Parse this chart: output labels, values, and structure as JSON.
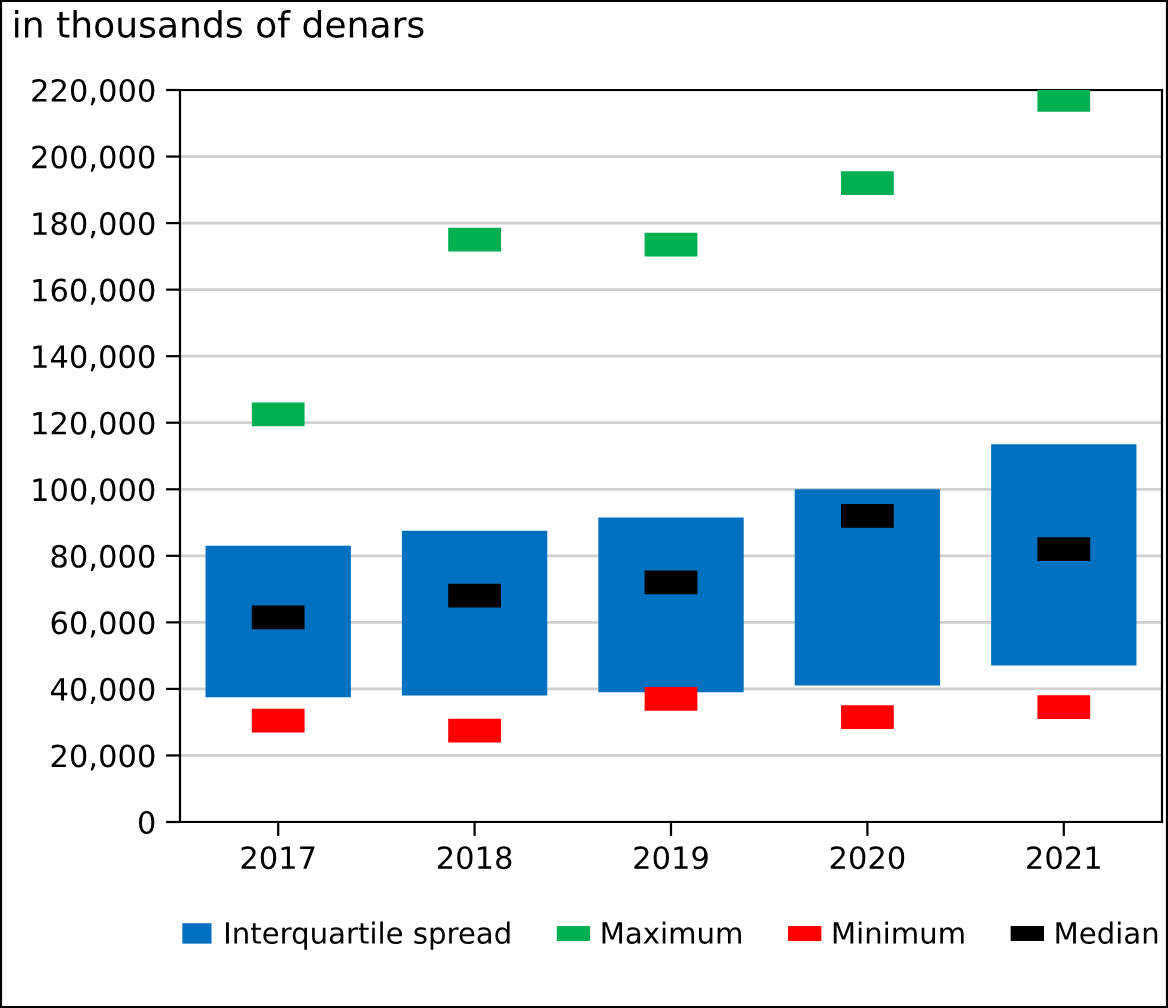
{
  "chart_data": {
    "type": "bar",
    "title": "in thousands of denars",
    "categories": [
      "2017",
      "2018",
      "2019",
      "2020",
      "2021"
    ],
    "series": [
      {
        "name": "Interquartile spread",
        "color": "#0070c0",
        "base": [
          37500,
          38000,
          39000,
          41000,
          47000
        ],
        "values": [
          45500,
          49500,
          52500,
          59000,
          66500
        ]
      },
      {
        "name": "Maximum",
        "type": "scatter",
        "color": "#00b050",
        "marker": "square",
        "values": [
          122500,
          175000,
          173500,
          192000,
          217000
        ]
      },
      {
        "name": "Minimum",
        "type": "scatter",
        "color": "#ff0000",
        "marker": "square",
        "values": [
          30500,
          27500,
          37000,
          31500,
          34500
        ]
      },
      {
        "name": "Median",
        "type": "scatter",
        "color": "#000000",
        "marker": "square",
        "values": [
          61500,
          68000,
          72000,
          92000,
          82000
        ]
      }
    ],
    "ylim": [
      0,
      220000
    ],
    "yticks": [
      0,
      {
        "value": 20000,
        "label": "20,000"
      },
      {
        "value": 40000,
        "label": "40,000"
      },
      {
        "value": 60000,
        "label": "60,000"
      },
      {
        "value": 80000,
        "label": "80,000"
      },
      {
        "value": 100000,
        "label": "100,000"
      },
      {
        "value": 120000,
        "label": "120,000"
      },
      {
        "value": 140000,
        "label": "140,000"
      },
      {
        "value": 160000,
        "label": "160,000"
      },
      {
        "value": 180000,
        "label": "180,000"
      },
      {
        "value": 200000,
        "label": "200,000"
      },
      {
        "value": 220000,
        "label": "220,000"
      }
    ],
    "grid": "y",
    "legend": "bottom"
  }
}
